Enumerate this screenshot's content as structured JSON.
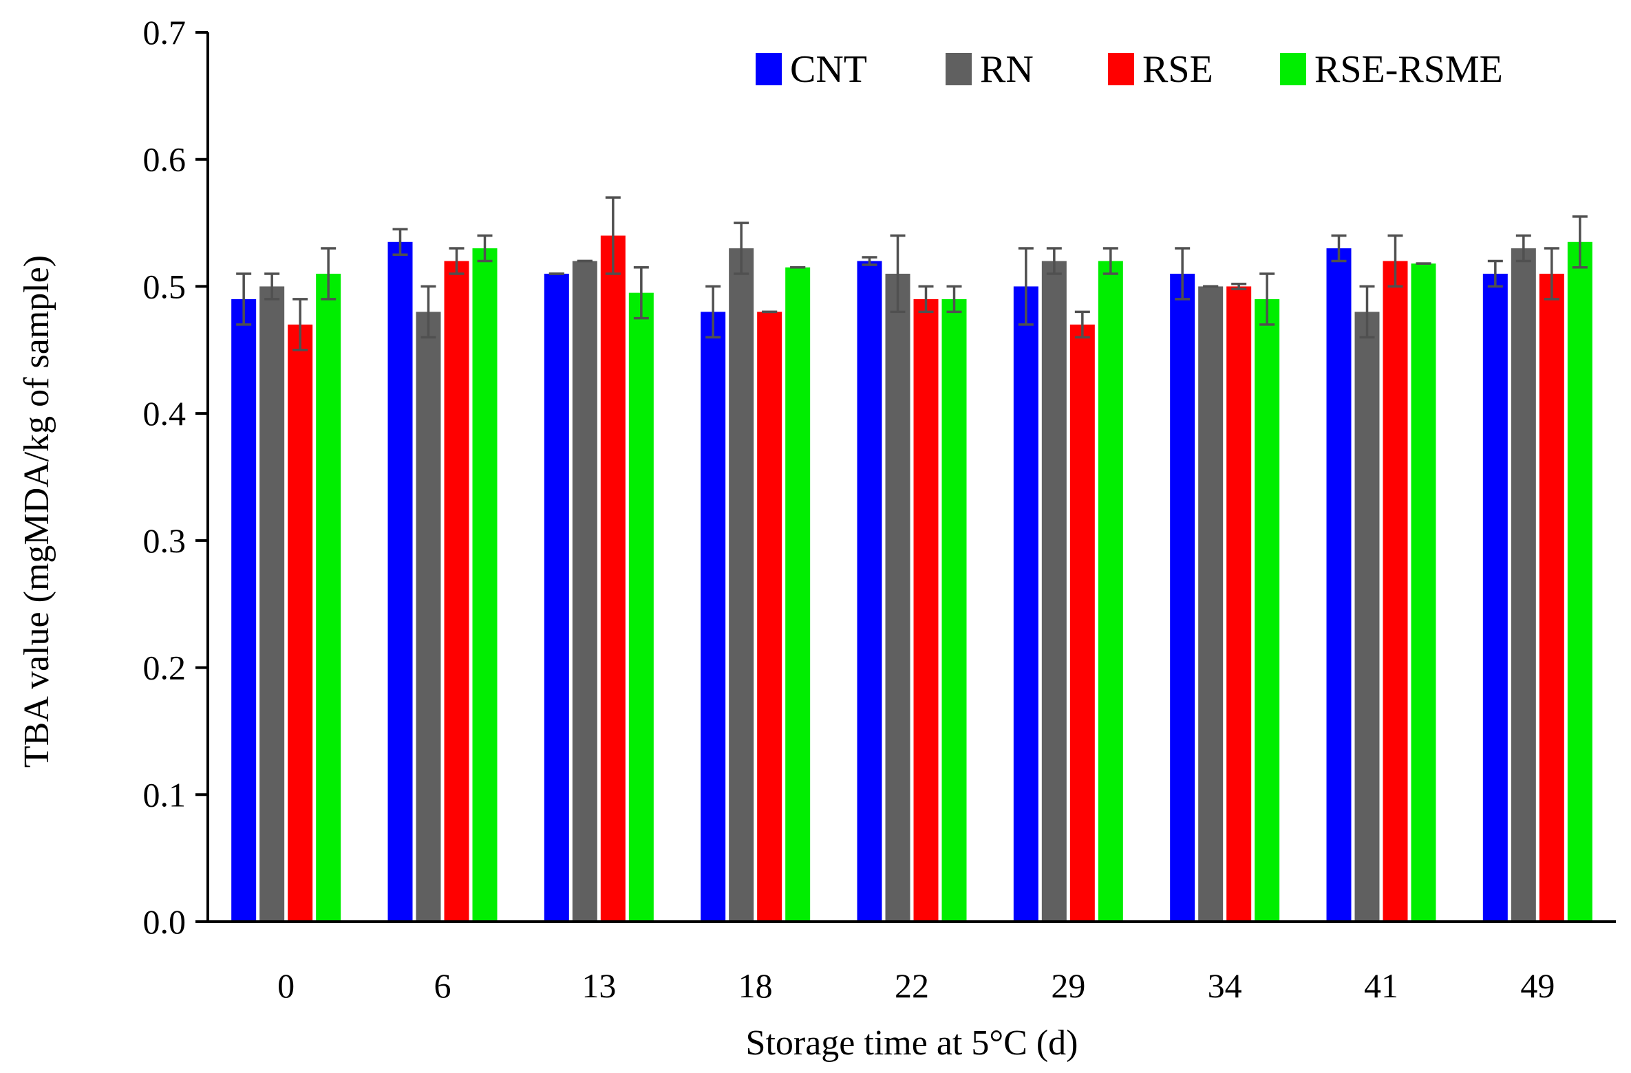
{
  "chart_data": {
    "type": "bar",
    "title": "",
    "xlabel": "Storage time at 5°C (d)",
    "ylabel": "TBA value (mgMDA/kg of sample)",
    "ylim": [
      0,
      0.7
    ],
    "yticks": [
      "0.0",
      "0.1",
      "0.2",
      "0.3",
      "0.4",
      "0.5",
      "0.6",
      "0.7"
    ],
    "yticks_values": [
      0,
      0.1,
      0.2,
      0.3,
      0.4,
      0.5,
      0.6,
      0.7
    ],
    "grid": false,
    "legend_position": "top-right",
    "categories": [
      "0",
      "6",
      "13",
      "18",
      "22",
      "29",
      "34",
      "41",
      "49"
    ],
    "series": [
      {
        "name": "CNT",
        "color": "#0000ff",
        "values": [
          0.49,
          0.535,
          0.51,
          0.48,
          0.52,
          0.5,
          0.51,
          0.53,
          0.51
        ],
        "errors": [
          0.02,
          0.01,
          0.0,
          0.02,
          0.003,
          0.03,
          0.02,
          0.01,
          0.01
        ]
      },
      {
        "name": "RN",
        "color": "#606060",
        "values": [
          0.5,
          0.48,
          0.52,
          0.53,
          0.51,
          0.52,
          0.5,
          0.48,
          0.53
        ],
        "errors": [
          0.01,
          0.02,
          0.0,
          0.02,
          0.03,
          0.01,
          0.0,
          0.02,
          0.01
        ]
      },
      {
        "name": "RSE",
        "color": "#ff0000",
        "values": [
          0.47,
          0.52,
          0.54,
          0.48,
          0.49,
          0.47,
          0.5,
          0.52,
          0.51
        ],
        "errors": [
          0.02,
          0.01,
          0.03,
          0.0,
          0.01,
          0.01,
          0.002,
          0.02,
          0.02
        ]
      },
      {
        "name": "RSE-RSME",
        "color": "#00ee00",
        "values": [
          0.51,
          0.53,
          0.495,
          0.515,
          0.49,
          0.52,
          0.49,
          0.518,
          0.535
        ],
        "errors": [
          0.02,
          0.01,
          0.02,
          0.0,
          0.01,
          0.01,
          0.02,
          0.0,
          0.02
        ]
      }
    ]
  }
}
